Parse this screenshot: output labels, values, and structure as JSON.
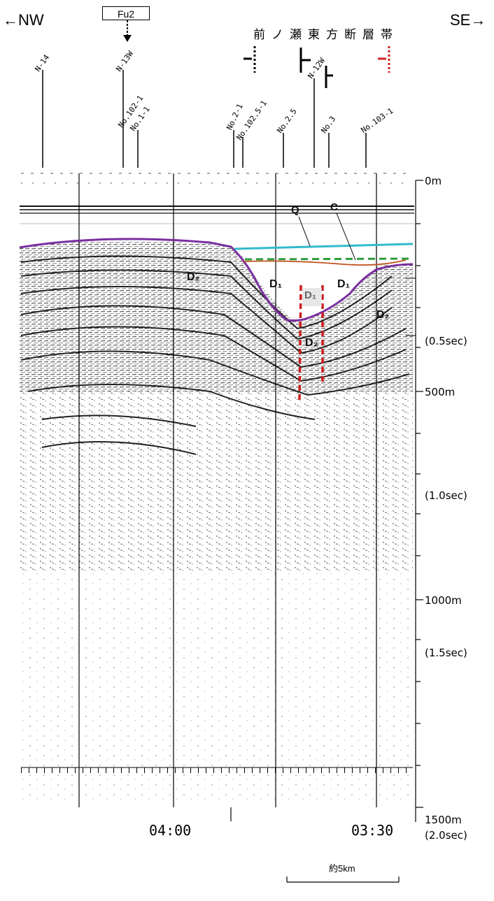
{
  "header": {
    "left_direction": "←NW",
    "right_direction": "SE→",
    "fault_zone_name": "前ノ瀬東方断層帯",
    "fu_label": "Fu2"
  },
  "survey_lines": [
    {
      "id": "N-14"
    },
    {
      "id": "N-13W"
    },
    {
      "id": "No.102-1"
    },
    {
      "id": "No.1-1"
    },
    {
      "id": "No.2-1"
    },
    {
      "id": "No.102.5-1"
    },
    {
      "id": "No.2.5"
    },
    {
      "id": "N-12W"
    },
    {
      "id": "No.3"
    },
    {
      "id": "No.103-1"
    }
  ],
  "units": {
    "Q": "Q",
    "C": "C",
    "D1_left": "D₁",
    "D1_center": "D₁",
    "D1_right": "D₁",
    "D2_left": "D₂",
    "D2_center": "D₂",
    "D2_right": "D₂"
  },
  "depth_scale": [
    {
      "label": "0m"
    },
    {
      "label": "(0.5sec)"
    },
    {
      "label": "500m"
    },
    {
      "label": "(1.0sec)"
    },
    {
      "label": "1000m"
    },
    {
      "label": "(1.5sec)"
    },
    {
      "label": "1500m"
    },
    {
      "label": "(2.0sec)"
    }
  ],
  "time_marks": {
    "left": "04:00",
    "right": "03:30"
  },
  "scale_bar": {
    "label": "約5km"
  },
  "colors": {
    "seafloor_top": "#7a2fa0",
    "q_layer": "#33bbcc",
    "c_layer": "#2e9b3c",
    "c_layer_inner": "#c0501c",
    "fault_trace": "#cc1e1e"
  }
}
